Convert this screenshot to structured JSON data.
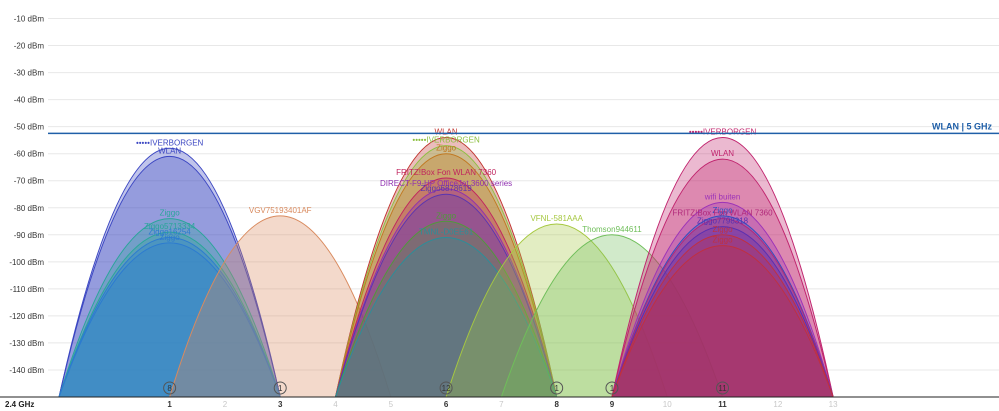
{
  "chart_data": {
    "type": "area",
    "band_label": "2.4 GHz",
    "reference_line_label": "WLAN | 5 GHz",
    "reference_line_value": -52.5,
    "ylim": [
      -150,
      -5
    ],
    "xlim": [
      -1.2,
      16
    ],
    "y_ticks": [
      "-10 dBm",
      "-20 dBm",
      "-30 dBm",
      "-40 dBm",
      "-50 dBm",
      "-60 dBm",
      "-70 dBm",
      "-80 dBm",
      "-90 dBm",
      "-100 dBm",
      "-110 dBm",
      "-120 dBm",
      "-130 dBm",
      "-140 dBm"
    ],
    "y_tick_values": [
      -10,
      -20,
      -30,
      -40,
      -50,
      -60,
      -70,
      -80,
      -90,
      -100,
      -110,
      -120,
      -130,
      -140
    ],
    "channels": [
      "1",
      "2",
      "3",
      "4",
      "5",
      "6",
      "7",
      "8",
      "9",
      "10",
      "11",
      "12",
      "13"
    ],
    "bold_channels": [
      "1",
      "3",
      "6",
      "8",
      "9",
      "11"
    ],
    "channel_markers": [
      {
        "channel": 1,
        "label": "8"
      },
      {
        "channel": 3,
        "label": "1"
      },
      {
        "channel": 6,
        "label": "12"
      },
      {
        "channel": 8,
        "label": "1"
      },
      {
        "channel": 9,
        "label": "1"
      },
      {
        "channel": 11,
        "label": "11"
      }
    ],
    "grid": true,
    "colors": {
      "ref_line": "#1f5fa8",
      "grid": "#e8e8e8"
    },
    "series": [
      {
        "name": "IVERBORGEN",
        "channel": 1,
        "peak": -58,
        "color": "#3b46c2",
        "hidden_label": true
      },
      {
        "name": "WLAN",
        "channel": 1,
        "peak": -61,
        "color": "#3b46c2"
      },
      {
        "name": "Ziggo",
        "channel": 1,
        "peak": -84,
        "color": "#2aa59a"
      },
      {
        "name": "Ziggo5713334",
        "channel": 1,
        "peak": -89,
        "color": "#2aa59a"
      },
      {
        "name": "Ziggo16254",
        "channel": 1,
        "peak": -91,
        "color": "#2c7bd0"
      },
      {
        "name": "Ziggo",
        "channel": 1,
        "peak": -93,
        "color": "#2c7bd0"
      },
      {
        "name": "VGV75193401AF",
        "channel": 3,
        "peak": -83,
        "color": "#d98a5e"
      },
      {
        "name": "WLAN",
        "channel": 6,
        "peak": -54,
        "color": "#c0332e"
      },
      {
        "name": "IVERBORGEN",
        "channel": 6,
        "peak": -57,
        "color": "#8cbf3f",
        "hidden_label": true
      },
      {
        "name": "Ziggo",
        "channel": 6,
        "peak": -60,
        "color": "#c07820"
      },
      {
        "name": "FRITZ!Box Fon WLAN 7360",
        "channel": 6,
        "peak": -69,
        "color": "#c0245e"
      },
      {
        "name": "DIRECT-F9-HP OfficeJet 3600 series",
        "channel": 6,
        "peak": -73,
        "color": "#8f2fb0"
      },
      {
        "name": "Ziggo6878619",
        "channel": 6,
        "peak": -75,
        "color": "#5a35b0"
      },
      {
        "name": "Ziggo",
        "channel": 6,
        "peak": -85,
        "color": "#4f9a3a"
      },
      {
        "name": "TMNL-D0EE61",
        "channel": 6,
        "peak": -91,
        "color": "#2a8f9a"
      },
      {
        "name": "VFNL-581AAA",
        "channel": 8,
        "peak": -86,
        "color": "#a6c840"
      },
      {
        "name": "Thomson944611",
        "channel": 9,
        "peak": -90,
        "color": "#6fbe5a"
      },
      {
        "name": "IVERBORGEN",
        "channel": 11,
        "peak": -54,
        "color": "#c0246e",
        "hidden_label": true
      },
      {
        "name": "WLAN",
        "channel": 11,
        "peak": -62,
        "color": "#c0246e"
      },
      {
        "name": "wifi buiten",
        "channel": 11,
        "peak": -78,
        "color": "#9c33b8"
      },
      {
        "name": "Ziggo",
        "channel": 11,
        "peak": -83,
        "color": "#2f4fc0"
      },
      {
        "name": "FRITZ!Box Fon WLAN 7360",
        "channel": 11,
        "peak": -84,
        "color": "#b0287a"
      },
      {
        "name": "Ziggo7798318",
        "channel": 11,
        "peak": -87,
        "color": "#5a2fb0"
      },
      {
        "name": "Ziggo",
        "channel": 11,
        "peak": -90,
        "color": "#c03040"
      },
      {
        "name": "Ziggo",
        "channel": 11,
        "peak": -94,
        "color": "#c03040"
      }
    ]
  }
}
